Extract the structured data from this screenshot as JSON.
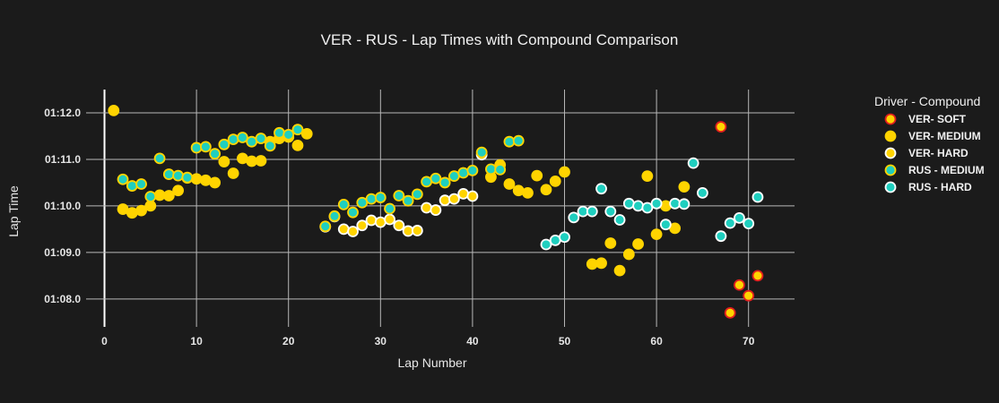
{
  "chart_data": {
    "type": "scatter",
    "title": "VER - RUS - Lap Times with Compound Comparison",
    "xlabel": "Lap Number",
    "ylabel": "Lap Time",
    "xlim": [
      -2,
      75
    ],
    "ylim": [
      67.4,
      72.5
    ],
    "x_ticks": [
      0,
      10,
      20,
      30,
      40,
      50,
      60,
      70
    ],
    "y_ticks": [
      {
        "value": 68,
        "label": "01:08.0"
      },
      {
        "value": 69,
        "label": "01:09.0"
      },
      {
        "value": 70,
        "label": "01:10.0"
      },
      {
        "value": 71,
        "label": "01:11.0"
      },
      {
        "value": 72,
        "label": "01:12.0"
      }
    ],
    "grid": true,
    "legend_title": "Driver - Compound",
    "legend_position": "right",
    "series": [
      {
        "name": "VER- SOFT",
        "fill": "#ffd400",
        "outline": "#e01e1e",
        "points": [
          [
            67,
            71.7
          ],
          [
            68,
            67.7
          ],
          [
            69,
            68.3
          ],
          [
            70,
            68.07
          ],
          [
            71,
            68.5
          ]
        ]
      },
      {
        "name": "VER- MEDIUM",
        "fill": "#ffd400",
        "outline": "#ffd400",
        "points": [
          [
            1,
            72.05
          ],
          [
            2,
            69.93
          ],
          [
            3,
            69.85
          ],
          [
            4,
            69.9
          ],
          [
            5,
            70.0
          ],
          [
            6,
            70.23
          ],
          [
            7,
            70.22
          ],
          [
            8,
            70.33
          ],
          [
            9,
            70.6
          ],
          [
            10,
            70.58
          ],
          [
            11,
            70.55
          ],
          [
            12,
            70.5
          ],
          [
            13,
            70.95
          ],
          [
            14,
            70.7
          ],
          [
            15,
            71.02
          ],
          [
            16,
            70.96
          ],
          [
            17,
            70.97
          ],
          [
            18,
            71.38
          ],
          [
            19,
            71.45
          ],
          [
            20,
            71.48
          ],
          [
            21,
            71.3
          ],
          [
            22,
            71.55
          ],
          [
            42,
            70.62
          ],
          [
            43,
            70.88
          ],
          [
            44,
            70.47
          ],
          [
            45,
            70.33
          ],
          [
            46,
            70.28
          ],
          [
            47,
            70.65
          ],
          [
            48,
            70.35
          ],
          [
            49,
            70.53
          ],
          [
            50,
            70.73
          ],
          [
            53,
            68.75
          ],
          [
            54,
            68.77
          ],
          [
            55,
            69.2
          ],
          [
            56,
            68.61
          ],
          [
            57,
            68.96
          ],
          [
            58,
            69.18
          ],
          [
            59,
            70.64
          ],
          [
            60,
            69.39
          ],
          [
            61,
            70.0
          ],
          [
            62,
            69.52
          ],
          [
            63,
            70.41
          ]
        ]
      },
      {
        "name": "VER- HARD",
        "fill": "#ffd400",
        "outline": "#ffffff",
        "points": [
          [
            24,
            69.55
          ],
          [
            25,
            69.77
          ],
          [
            26,
            69.5
          ],
          [
            27,
            69.45
          ],
          [
            28,
            69.58
          ],
          [
            29,
            69.69
          ],
          [
            30,
            69.65
          ],
          [
            31,
            69.71
          ],
          [
            32,
            69.58
          ],
          [
            33,
            69.46
          ],
          [
            34,
            69.47
          ],
          [
            35,
            69.96
          ],
          [
            36,
            69.91
          ],
          [
            37,
            70.12
          ],
          [
            38,
            70.15
          ],
          [
            39,
            70.26
          ],
          [
            40,
            70.21
          ],
          [
            41,
            71.1
          ]
        ]
      },
      {
        "name": "RUS - MEDIUM",
        "fill": "#1fcfbf",
        "outline": "#ffd400",
        "points": [
          [
            2,
            70.57
          ],
          [
            3,
            70.43
          ],
          [
            4,
            70.47
          ],
          [
            5,
            70.2
          ],
          [
            6,
            71.02
          ],
          [
            7,
            70.68
          ],
          [
            8,
            70.65
          ],
          [
            9,
            70.61
          ],
          [
            10,
            71.25
          ],
          [
            11,
            71.27
          ],
          [
            12,
            71.12
          ],
          [
            13,
            71.32
          ],
          [
            14,
            71.43
          ],
          [
            15,
            71.47
          ],
          [
            16,
            71.38
          ],
          [
            17,
            71.45
          ],
          [
            18,
            71.29
          ],
          [
            19,
            71.57
          ],
          [
            20,
            71.53
          ],
          [
            21,
            71.64
          ],
          [
            24,
            69.56
          ],
          [
            25,
            69.78
          ],
          [
            26,
            70.03
          ],
          [
            27,
            69.86
          ],
          [
            28,
            70.07
          ],
          [
            29,
            70.15
          ],
          [
            30,
            70.18
          ],
          [
            31,
            69.94
          ],
          [
            32,
            70.22
          ],
          [
            33,
            70.11
          ],
          [
            34,
            70.25
          ],
          [
            35,
            70.52
          ],
          [
            36,
            70.59
          ],
          [
            37,
            70.5
          ],
          [
            38,
            70.64
          ],
          [
            39,
            70.71
          ],
          [
            40,
            70.76
          ],
          [
            41,
            71.15
          ],
          [
            42,
            70.79
          ],
          [
            43,
            70.78
          ],
          [
            44,
            71.38
          ],
          [
            45,
            71.4
          ]
        ]
      },
      {
        "name": "RUS - HARD",
        "fill": "#1fcfbf",
        "outline": "#ffffff",
        "points": [
          [
            48,
            69.17
          ],
          [
            49,
            69.26
          ],
          [
            50,
            69.33
          ],
          [
            51,
            69.75
          ],
          [
            52,
            69.88
          ],
          [
            53,
            69.88
          ],
          [
            54,
            70.37
          ],
          [
            55,
            69.88
          ],
          [
            56,
            69.7
          ],
          [
            57,
            70.05
          ],
          [
            58,
            70.0
          ],
          [
            59,
            69.96
          ],
          [
            60,
            70.05
          ],
          [
            61,
            69.6
          ],
          [
            62,
            70.05
          ],
          [
            63,
            70.04
          ],
          [
            64,
            70.92
          ],
          [
            65,
            70.28
          ],
          [
            67,
            69.35
          ],
          [
            68,
            69.63
          ],
          [
            69,
            69.74
          ],
          [
            70,
            69.62
          ],
          [
            71,
            70.19
          ]
        ]
      }
    ]
  }
}
